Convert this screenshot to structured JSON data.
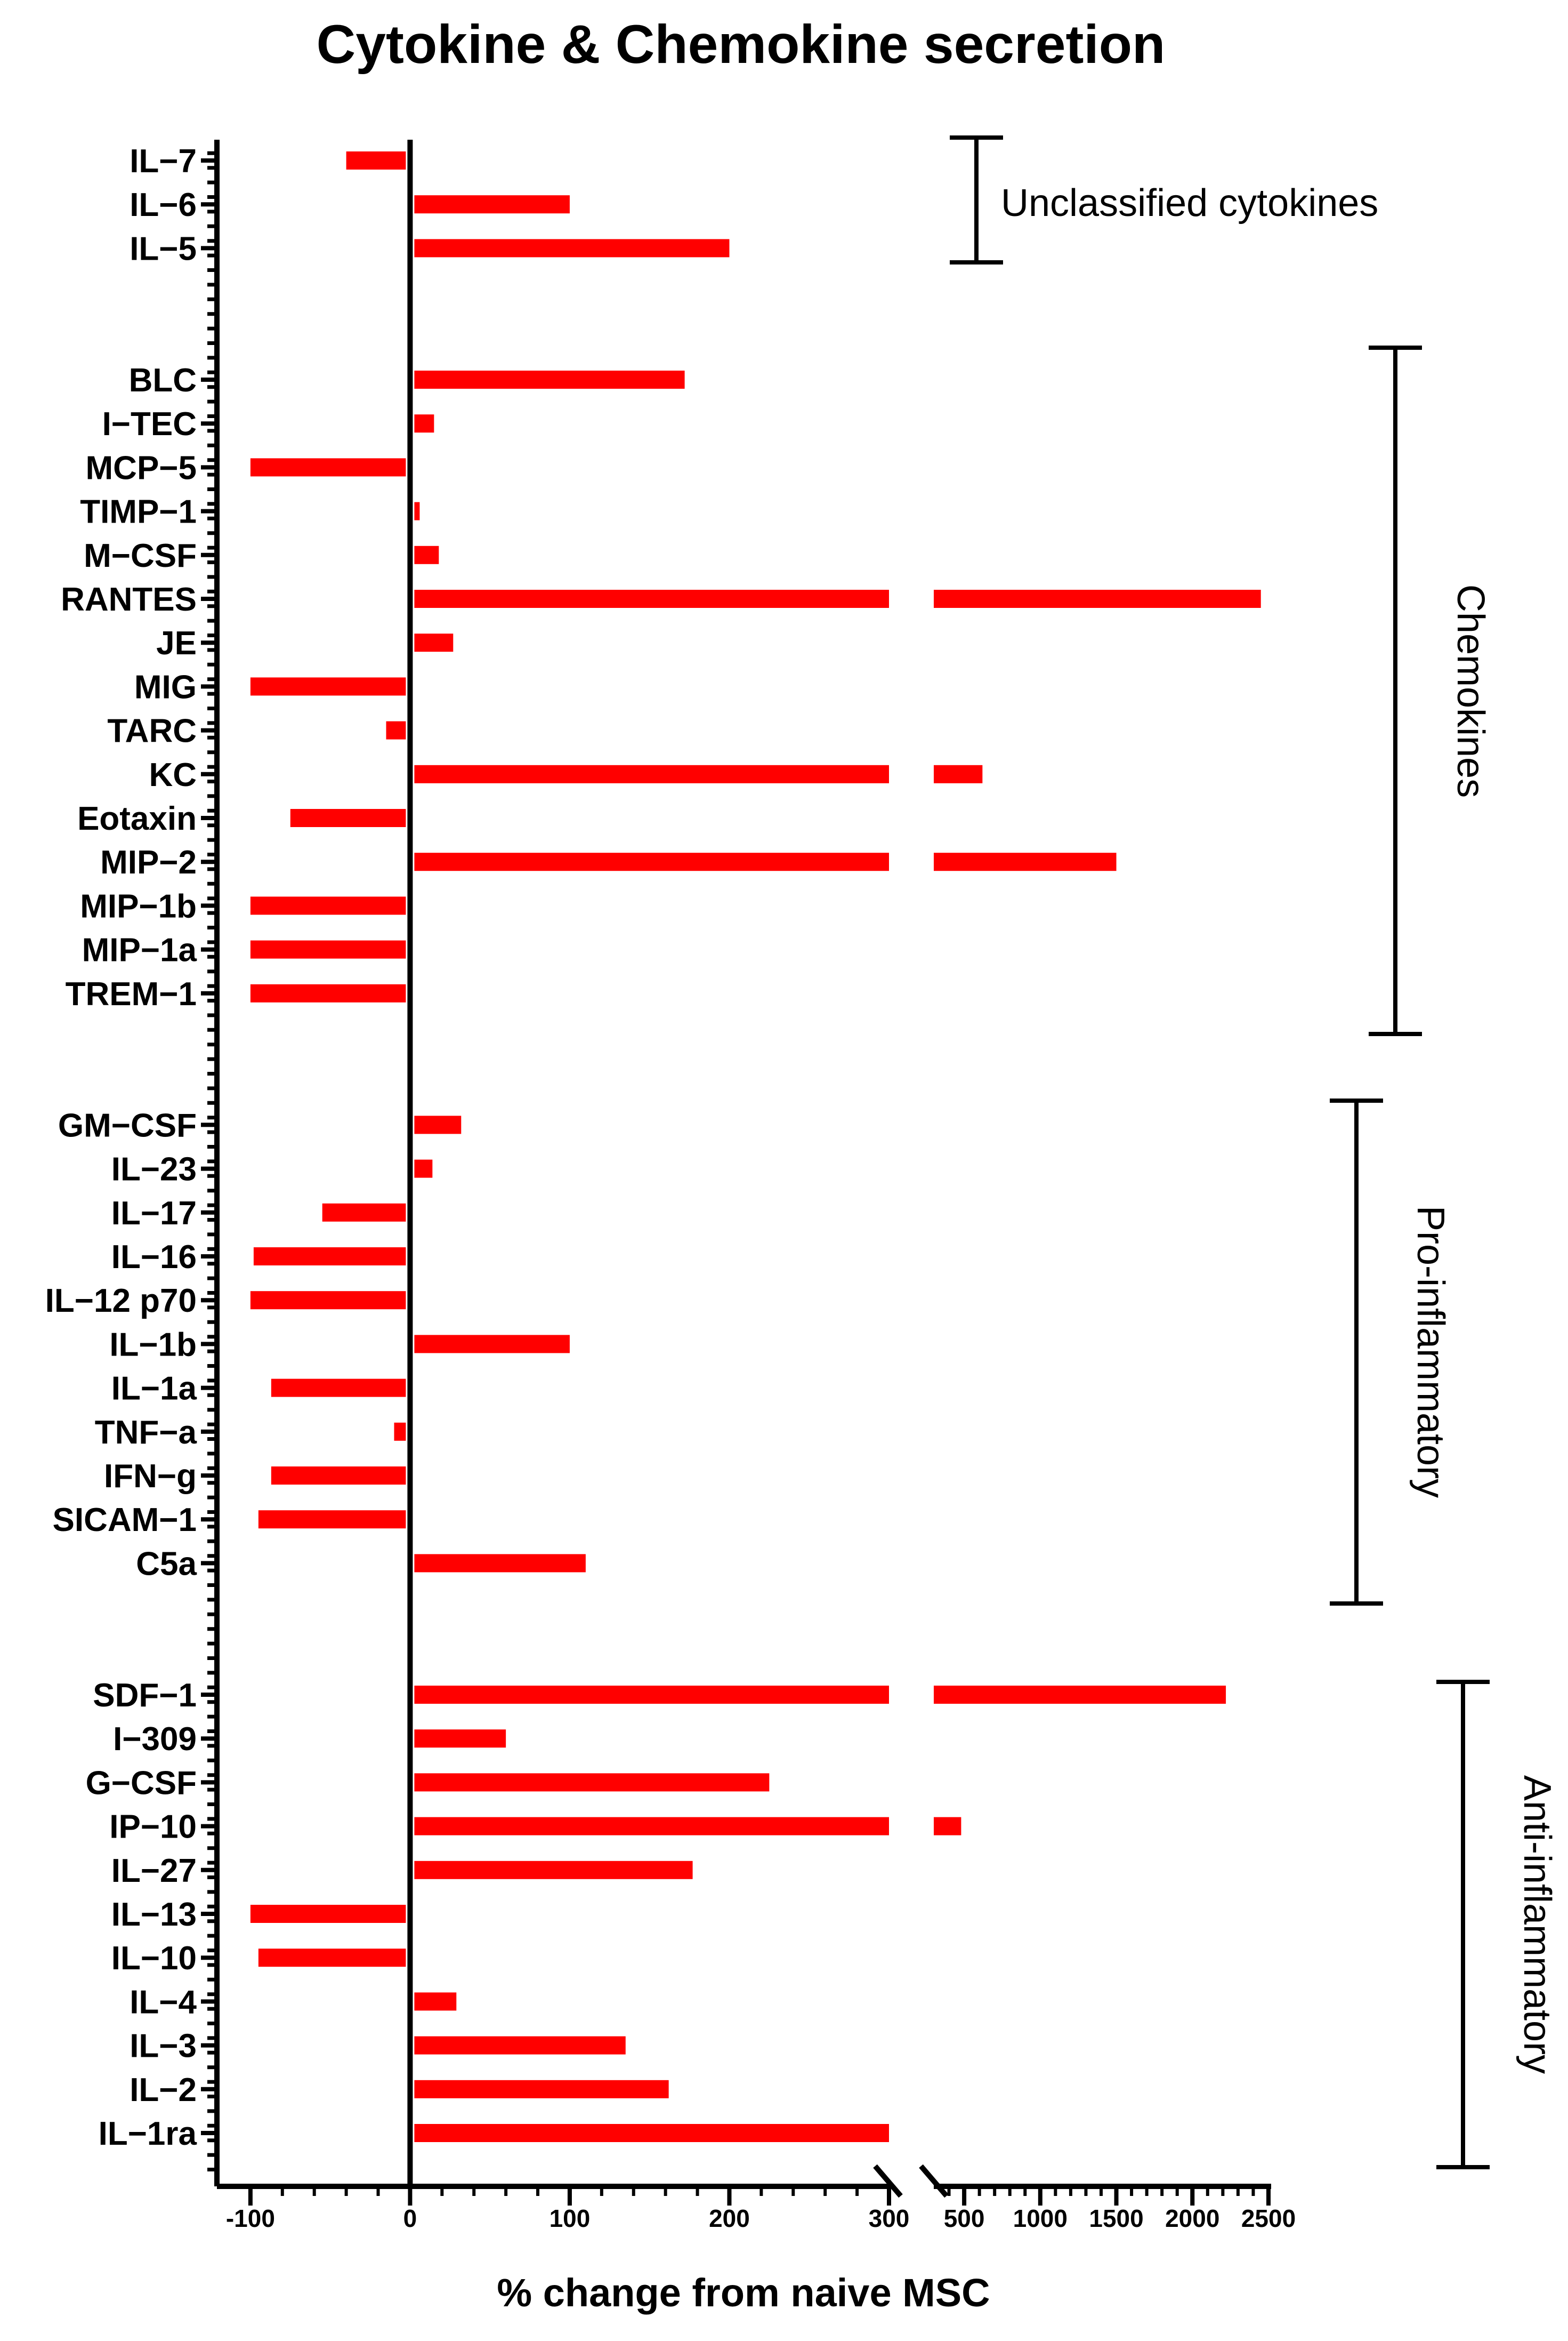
{
  "chart_data": {
    "type": "bar",
    "orientation": "horizontal",
    "title": "Cytokine & Chemokine secretion",
    "xlabel": "% change from naive MSC",
    "ylabel": "",
    "bar_color": "#ff0000",
    "axis_break": {
      "segment1": [
        -120,
        300
      ],
      "segment2": [
        300,
        2500
      ]
    },
    "xticks_segment1": [
      "-100",
      "0",
      "100",
      "200",
      "300"
    ],
    "xticks_segment2": [
      "500",
      "1000",
      "1500",
      "2000",
      "2500"
    ],
    "groups": [
      {
        "name": "Unclassified cytokines",
        "categories": [
          "IL-7",
          "IL-6",
          "IL-5"
        ],
        "values": [
          -40,
          100,
          200
        ]
      },
      {
        "name": "Chemokines",
        "categories": [
          "BLC",
          "I-TEC",
          "MCP-5",
          "TIMP-1",
          "M-CSF",
          "RANTES",
          "JE",
          "MIG",
          "TARC",
          "KC",
          "Eotaxin",
          "MIP-2",
          "MIP-1b",
          "MIP-1a",
          "TREM-1"
        ],
        "values": [
          172,
          15,
          -100,
          2,
          18,
          2450,
          27,
          -100,
          -15,
          620,
          -75,
          1500,
          -100,
          -100,
          -100
        ]
      },
      {
        "name": "Pro-inflammatory",
        "categories": [
          "GM-CSF",
          "IL-23",
          "IL-17",
          "IL-16",
          "IL-12 p70",
          "IL-1b",
          "IL-1a",
          "TNF-a",
          "IFN-g",
          "SICAM-1",
          "C5a"
        ],
        "values": [
          32,
          14,
          -55,
          -98,
          -100,
          100,
          -87,
          -10,
          -87,
          -95,
          110
        ]
      },
      {
        "name": "Anti-inflammatory",
        "categories": [
          "SDF-1",
          "I-309",
          "G-CSF",
          "IP-10",
          "IL-27",
          "IL-13",
          "IL-10",
          "IL-4",
          "IL-3",
          "IL-2",
          "IL-1ra"
        ],
        "values": [
          2220,
          60,
          225,
          480,
          177,
          -100,
          -95,
          29,
          135,
          162,
          300
        ]
      }
    ],
    "grid": false,
    "legend": "none"
  }
}
